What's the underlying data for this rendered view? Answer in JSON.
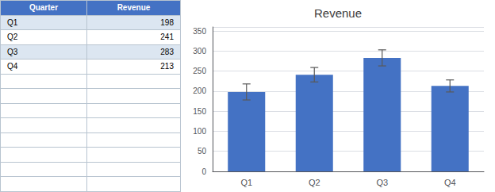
{
  "chart_data": [
    {
      "type": "table",
      "columns": [
        "Quarter",
        "Revenue"
      ],
      "categories": [
        "Q1",
        "Q2",
        "Q3",
        "Q4"
      ],
      "values": [
        198,
        241,
        283,
        213
      ],
      "color": "#4472C4"
    },
    {
      "type": "bar",
      "title": "Revenue",
      "categories": [
        "Q1",
        "Q2",
        "Q3",
        "Q4"
      ],
      "values": [
        198,
        241,
        283,
        213
      ],
      "error": [
        20,
        18,
        20,
        15
      ],
      "color": "#4472C4",
      "ylim": [
        0,
        360
      ],
      "yticks": [
        0,
        50,
        100,
        150,
        200,
        250,
        300,
        350
      ],
      "grid": true
    }
  ]
}
